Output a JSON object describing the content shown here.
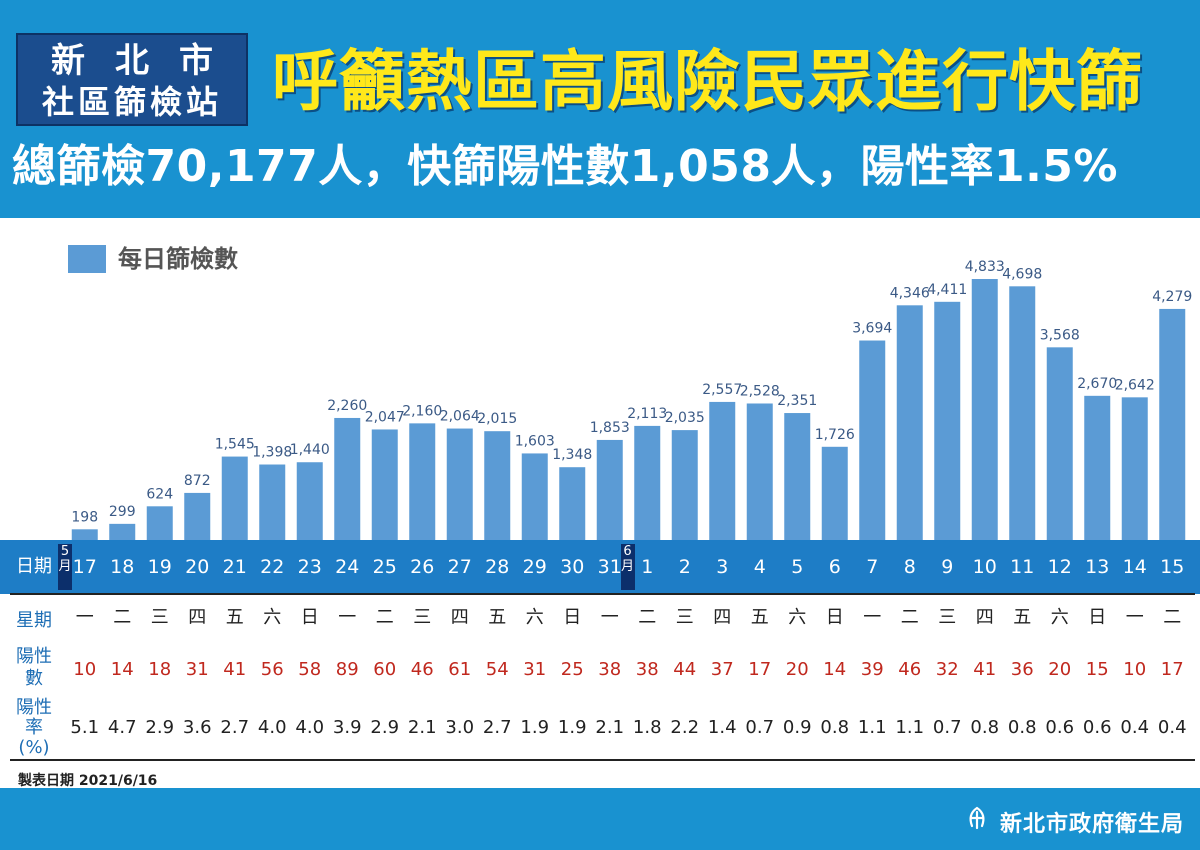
{
  "header": {
    "org_line1": "新北市",
    "org_line2": "社區篩檢站",
    "title": "呼籲熱區高風險民眾進行快篩",
    "subtitle": "總篩檢70,177人，快篩陽性數1,058人，陽性率1.5%"
  },
  "legend": {
    "label": "每日篩檢數",
    "color": "#5b9bd5"
  },
  "table": {
    "date_label": "日期",
    "weekday_label": "星期",
    "positive_label": "陽性數",
    "rate_label": "陽性率(%)",
    "months": [
      {
        "label": "5月",
        "index": 0
      },
      {
        "label": "6月",
        "index": 15
      }
    ]
  },
  "chart_data": {
    "type": "bar",
    "title": "每日篩檢數",
    "categories": [
      "17",
      "18",
      "19",
      "20",
      "21",
      "22",
      "23",
      "24",
      "25",
      "26",
      "27",
      "28",
      "29",
      "30",
      "31",
      "1",
      "2",
      "3",
      "4",
      "5",
      "6",
      "7",
      "8",
      "9",
      "10",
      "11",
      "12",
      "13",
      "14",
      "15"
    ],
    "weekdays": [
      "一",
      "二",
      "三",
      "四",
      "五",
      "六",
      "日",
      "一",
      "二",
      "三",
      "四",
      "五",
      "六",
      "日",
      "一",
      "二",
      "三",
      "四",
      "五",
      "六",
      "日",
      "一",
      "二",
      "三",
      "四",
      "五",
      "六",
      "日",
      "一",
      "二"
    ],
    "series": [
      {
        "name": "每日篩檢數",
        "values": [
          198,
          299,
          624,
          872,
          1545,
          1398,
          1440,
          2260,
          2047,
          2160,
          2064,
          2015,
          1603,
          1348,
          1853,
          2113,
          2035,
          2557,
          2528,
          2351,
          1726,
          3694,
          4346,
          4411,
          4833,
          4698,
          3568,
          2670,
          2642,
          4279
        ]
      }
    ],
    "value_labels": [
      "198",
      "299",
      "624",
      "872",
      "1,545",
      "1,398",
      "1,440",
      "2,260",
      "2,047",
      "2,160",
      "2,064",
      "2,015",
      "1,603",
      "1,348",
      "1,853",
      "2,113",
      "2,035",
      "2,557",
      "2,528",
      "2,351",
      "1,726",
      "3,694",
      "4,346",
      "4,411",
      "4,833",
      "4,698",
      "3,568",
      "2,670",
      "2,642",
      "4,279"
    ],
    "positives": [
      10,
      14,
      18,
      31,
      41,
      56,
      58,
      89,
      60,
      46,
      61,
      54,
      31,
      25,
      38,
      38,
      44,
      37,
      17,
      20,
      14,
      39,
      46,
      32,
      41,
      36,
      20,
      15,
      10,
      17
    ],
    "positive_rate": [
      "5.1",
      "4.7",
      "2.9",
      "3.6",
      "2.7",
      "4.0",
      "4.0",
      "3.9",
      "2.9",
      "2.1",
      "3.0",
      "2.7",
      "1.9",
      "1.9",
      "2.1",
      "1.8",
      "2.2",
      "1.4",
      "0.7",
      "0.9",
      "0.8",
      "1.1",
      "1.1",
      "0.7",
      "0.8",
      "0.8",
      "0.6",
      "0.6",
      "0.4",
      "0.4"
    ],
    "ylim": [
      0,
      5000
    ],
    "bar_color": "#5b9bd5",
    "label_color": "#3b5a86"
  },
  "footer": {
    "made_date": "製表日期 2021/6/16",
    "agency": "新北市政府衛生局"
  }
}
